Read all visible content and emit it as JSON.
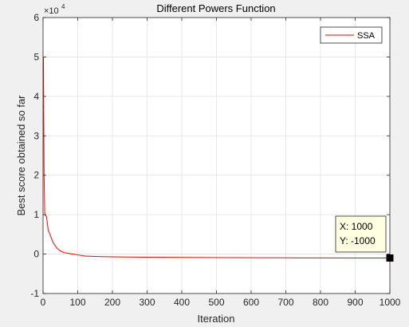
{
  "chart_data": {
    "type": "line",
    "title": "Different Powers Function",
    "xlabel": "Iteration",
    "ylabel": "Best score obtained so far",
    "xlim": [
      0,
      1000
    ],
    "ylim": [
      -10000,
      60000
    ],
    "xticks": [
      0,
      100,
      200,
      300,
      400,
      500,
      600,
      700,
      800,
      900,
      1000
    ],
    "yticks": [
      -10000,
      0,
      10000,
      20000,
      30000,
      40000,
      50000,
      60000
    ],
    "ytick_labels": [
      "-1",
      "0",
      "1",
      "2",
      "3",
      "4",
      "5",
      "6"
    ],
    "y_exponent_base": "×10",
    "y_exponent_power": "4",
    "grid": true,
    "legend_position": "top-right",
    "series": [
      {
        "name": "SSA",
        "color": "#ff0000",
        "x": [
          1,
          2,
          3,
          5,
          7,
          10,
          15,
          20,
          25,
          30,
          40,
          50,
          60,
          80,
          100,
          120,
          150,
          200,
          300,
          400,
          500,
          600,
          700,
          800,
          900,
          1000
        ],
        "y": [
          50000,
          35000,
          20000,
          10000,
          9800,
          9500,
          6000,
          5000,
          3800,
          2800,
          1500,
          800,
          400,
          100,
          -200,
          -500,
          -600,
          -700,
          -800,
          -850,
          -900,
          -920,
          -950,
          -970,
          -990,
          -1000
        ]
      }
    ],
    "datatip": {
      "x": 1000,
      "y": -1000,
      "x_label": "X: 1000",
      "y_label": "Y: -1000"
    }
  }
}
